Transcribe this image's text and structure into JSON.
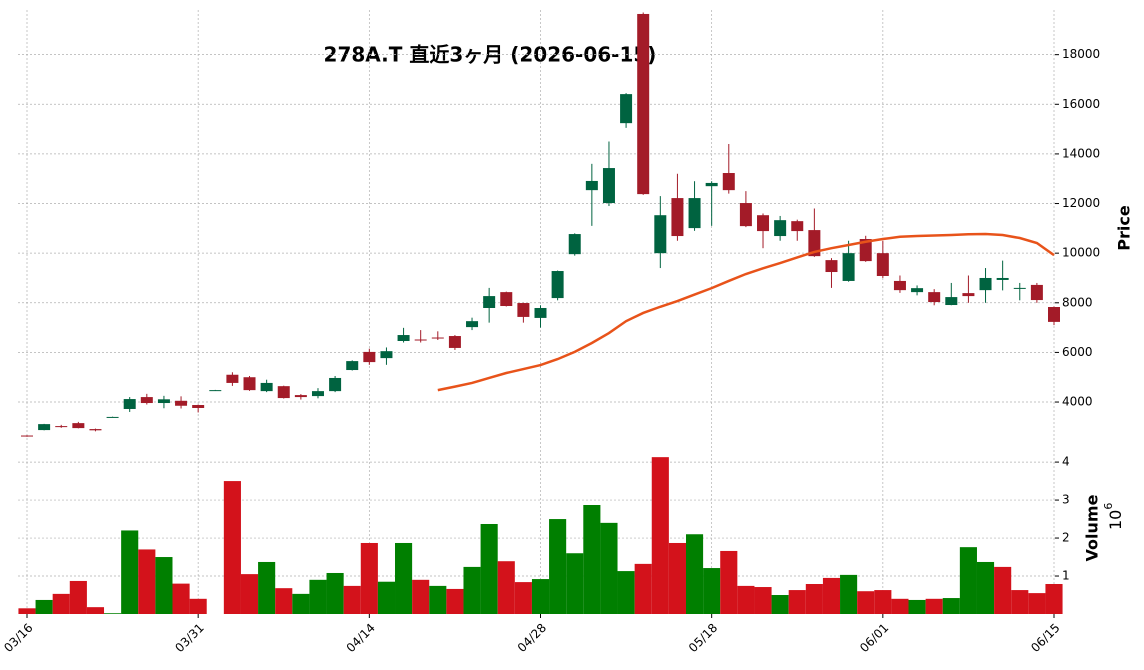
{
  "chart_data": {
    "type": "candlestick",
    "title": "278A.T  直近3ヶ月  (2026-06-15)",
    "categories": [
      "03/16",
      null,
      null,
      null,
      null,
      null,
      null,
      null,
      null,
      null,
      "03/31",
      null,
      null,
      null,
      null,
      null,
      null,
      null,
      null,
      null,
      "04/14",
      null,
      null,
      null,
      null,
      null,
      null,
      null,
      null,
      null,
      "04/28",
      null,
      null,
      null,
      null,
      null,
      null,
      null,
      null,
      null,
      "05/18",
      null,
      null,
      null,
      null,
      null,
      null,
      null,
      null,
      null,
      "06/01",
      null,
      null,
      null,
      null,
      null,
      null,
      null,
      null,
      null,
      "06/15"
    ],
    "open": [
      2650,
      2870,
      3030,
      3150,
      2910,
      3390,
      3720,
      4200,
      3960,
      4050,
      3880,
      4470,
      5100,
      5000,
      4440,
      4640,
      4280,
      4240,
      4440,
      5290,
      6020,
      5770,
      6460,
      6520,
      6600,
      6660,
      7020,
      7790,
      8430,
      7990,
      7390,
      8190,
      9960,
      12540,
      12020,
      15240,
      19640,
      10000,
      12220,
      11010,
      12700,
      13230,
      12020,
      11530,
      10690,
      11290,
      10930,
      9720,
      8880,
      10570,
      10000,
      8880,
      8430,
      8430,
      7910,
      8390,
      8510,
      8920,
      8560,
      8720,
      7830
    ],
    "high": [
      2660,
      3120,
      3080,
      3200,
      2930,
      3410,
      4200,
      4330,
      4250,
      4230,
      3900,
      4490,
      5200,
      5050,
      4900,
      4660,
      4320,
      4560,
      5050,
      5680,
      6150,
      6200,
      6990,
      6900,
      6850,
      6700,
      7400,
      8600,
      8450,
      8000,
      7900,
      9300,
      10800,
      13600,
      14500,
      16450,
      19700,
      12300,
      13200,
      12900,
      12900,
      14400,
      12500,
      11600,
      11500,
      11350,
      11800,
      9800,
      10500,
      10700,
      10500,
      9100,
      8700,
      8550,
      8800,
      9100,
      9400,
      9700,
      8800,
      8800,
      7850
    ],
    "low": [
      2600,
      2860,
      2960,
      2940,
      2820,
      3390,
      3600,
      3900,
      3750,
      3740,
      3580,
      4470,
      4650,
      4450,
      4400,
      4140,
      4100,
      4150,
      4400,
      5270,
      5500,
      5500,
      6400,
      6400,
      6500,
      6100,
      6900,
      7200,
      7850,
      7200,
      7000,
      8100,
      9900,
      11100,
      11900,
      15050,
      12350,
      9400,
      10500,
      10900,
      11100,
      12400,
      11050,
      10200,
      10500,
      10500,
      9850,
      8600,
      8850,
      9650,
      9000,
      8400,
      8300,
      7900,
      7900,
      8000,
      8000,
      8500,
      8100,
      8000,
      7100
    ],
    "close": [
      2620,
      3110,
      3000,
      2950,
      2860,
      3400,
      4120,
      3960,
      4110,
      3850,
      3760,
      4480,
      4770,
      4480,
      4770,
      4160,
      4200,
      4440,
      4970,
      5650,
      5610,
      6050,
      6700,
      6480,
      6560,
      6180,
      7260,
      8270,
      7870,
      7430,
      7790,
      9280,
      10770,
      12910,
      13430,
      16410,
      12380,
      11530,
      10690,
      12220,
      12830,
      12540,
      11090,
      10890,
      11330,
      10890,
      9880,
      9240,
      10000,
      9680,
      9080,
      8510,
      8590,
      8030,
      8230,
      8270,
      9000,
      9000,
      8600,
      8110,
      7230
    ],
    "up_color": "#006340",
    "down_color": "#a31b28",
    "moving_average": {
      "color": "#e8531a",
      "values": [
        null,
        null,
        null,
        null,
        null,
        null,
        null,
        null,
        null,
        null,
        null,
        null,
        null,
        null,
        null,
        null,
        null,
        null,
        null,
        null,
        null,
        null,
        null,
        null,
        4480,
        4620,
        4770,
        4970,
        5170,
        5330,
        5490,
        5730,
        6020,
        6380,
        6780,
        7260,
        7590,
        7840,
        8070,
        8330,
        8590,
        8880,
        9160,
        9390,
        9600,
        9830,
        10050,
        10200,
        10330,
        10460,
        10570,
        10660,
        10690,
        10710,
        10730,
        10760,
        10770,
        10730,
        10610,
        10410,
        9920
      ]
    },
    "volume": [
      0.15,
      0.37,
      0.53,
      0.87,
      0.18,
      0.02,
      2.2,
      1.7,
      1.5,
      0.8,
      0.4,
      null,
      3.5,
      1.05,
      1.37,
      0.68,
      0.53,
      0.9,
      1.08,
      0.74,
      1.87,
      0.85,
      1.87,
      0.9,
      0.74,
      0.66,
      1.24,
      2.37,
      1.39,
      0.84,
      0.92,
      2.5,
      1.6,
      2.87,
      2.4,
      1.13,
      1.32,
      4.13,
      1.87,
      2.1,
      1.21,
      1.66,
      0.74,
      0.71,
      0.5,
      0.63,
      0.79,
      0.95,
      1.03,
      0.6,
      0.63,
      0.4,
      0.37,
      0.4,
      0.42,
      1.76,
      1.37,
      1.24,
      0.63,
      0.55,
      0.79
    ],
    "volume_colors": [
      "#d3121b",
      "#007f00",
      "#d3121b",
      "#d3121b",
      "#d3121b",
      "#007f00",
      "#007f00",
      "#d3121b",
      "#007f00",
      "#d3121b",
      "#d3121b",
      null,
      "#d3121b",
      "#d3121b",
      "#007f00",
      "#d3121b",
      "#007f00",
      "#007f00",
      "#007f00",
      "#d3121b",
      "#d3121b",
      "#007f00",
      "#007f00",
      "#d3121b",
      "#007f00",
      "#d3121b",
      "#007f00",
      "#007f00",
      "#d3121b",
      "#d3121b",
      "#007f00",
      "#007f00",
      "#007f00",
      "#007f00",
      "#007f00",
      "#007f00",
      "#d3121b",
      "#d3121b",
      "#d3121b",
      "#007f00",
      "#007f00",
      "#d3121b",
      "#d3121b",
      "#d3121b",
      "#007f00",
      "#d3121b",
      "#d3121b",
      "#d3121b",
      "#007f00",
      "#d3121b",
      "#d3121b",
      "#d3121b",
      "#007f00",
      "#d3121b",
      "#007f00",
      "#007f00",
      "#007f00",
      "#d3121b",
      "#d3121b",
      "#d3121b",
      "#d3121b"
    ],
    "ylabel": "Price",
    "ylim": [
      2470,
      19800
    ],
    "yticks": [
      4000,
      6000,
      8000,
      10000,
      12000,
      14000,
      16000,
      18000
    ],
    "volume_label": "Volume",
    "volume_offset": {
      "base": "10",
      "exponent": "6"
    },
    "volume_ylim": [
      0,
      4.45
    ],
    "volume_yticks": [
      1,
      2,
      3,
      4
    ],
    "grid": true
  }
}
